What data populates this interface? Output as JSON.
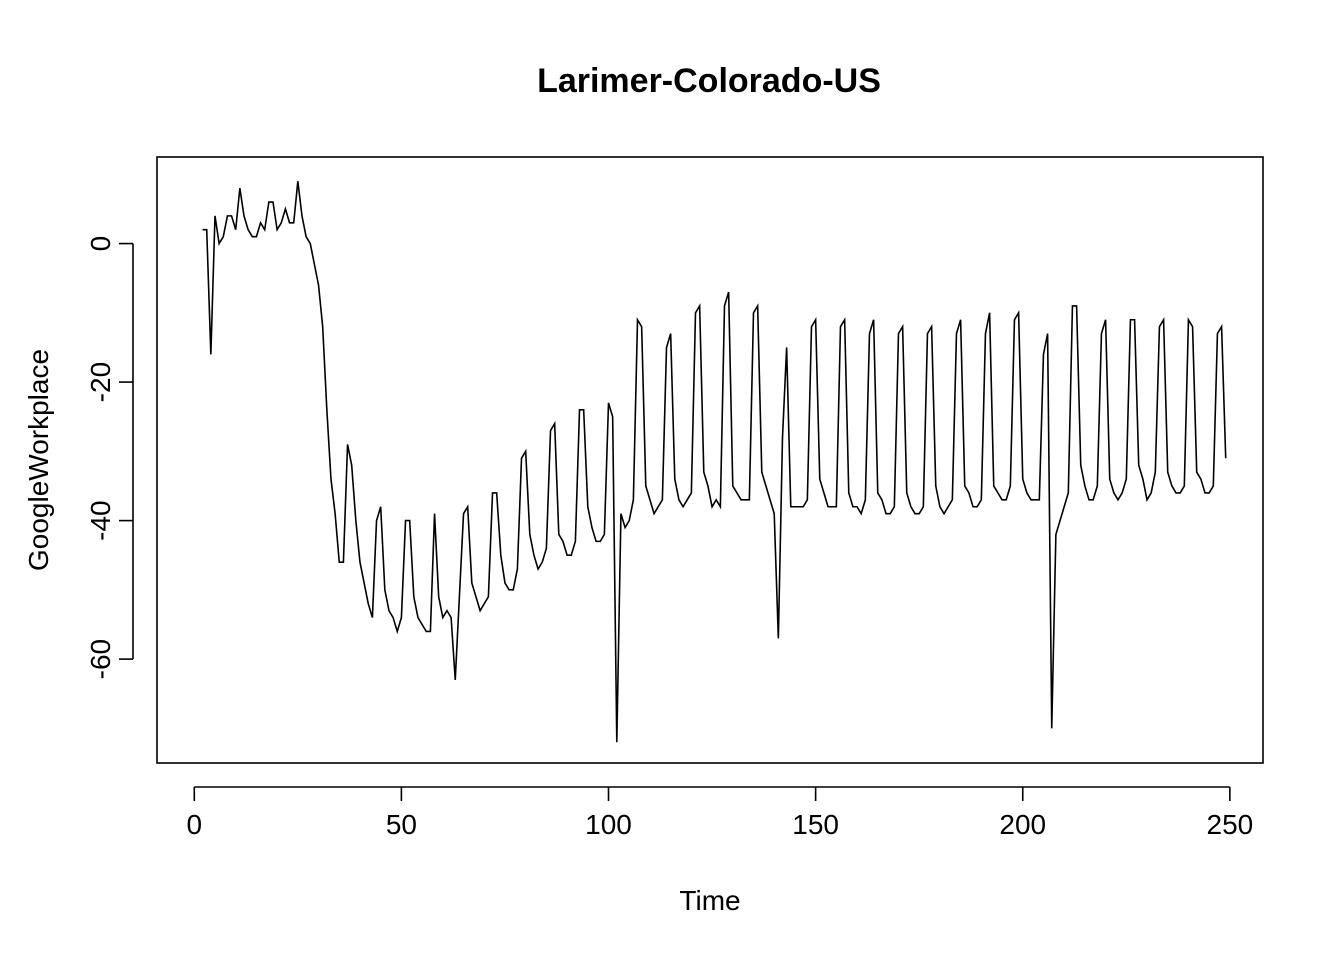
{
  "chart_data": {
    "type": "line",
    "title": "Larimer-Colorado-US",
    "xlabel": "Time",
    "ylabel": "GoogleWorkplace",
    "xlim": [
      -9,
      258
    ],
    "ylim": [
      -75,
      12.5
    ],
    "x_ticks": [
      0,
      50,
      100,
      150,
      200,
      250
    ],
    "x_tick_labels": [
      "0",
      "50",
      "100",
      "150",
      "200",
      "250"
    ],
    "y_ticks": [
      0,
      -20,
      -40,
      -60
    ],
    "y_tick_labels": [
      "0",
      "-20",
      "-40",
      "-60"
    ],
    "grid": false,
    "legend": "none",
    "color": "#000000",
    "series": [
      {
        "x_start": 2,
        "values": [
          2,
          2,
          -16,
          4,
          0,
          1,
          4,
          4,
          2,
          8,
          4,
          2,
          1,
          1,
          3,
          2,
          6,
          6,
          2,
          3,
          5,
          3,
          3,
          9,
          4,
          1,
          0,
          -3,
          -6,
          -12,
          -24,
          -34,
          -39,
          -46,
          -46,
          -29,
          -32,
          -40,
          -46,
          -49,
          -52,
          -54,
          -40,
          -38,
          -50,
          -53,
          -54,
          -56,
          -54,
          -40,
          -40,
          -51,
          -54,
          -55,
          -56,
          -56,
          -39,
          -51,
          -54,
          -53,
          -54,
          -63,
          -51,
          -39,
          -38,
          -49,
          -51,
          -53,
          -52,
          -51,
          -36,
          -36,
          -45,
          -49,
          -50,
          -50,
          -47,
          -31,
          -30,
          -42,
          -45,
          -47,
          -46,
          -44,
          -27,
          -26,
          -42,
          -43,
          -45,
          -45,
          -43,
          -24,
          -24,
          -38,
          -41,
          -43,
          -43,
          -42,
          -23,
          -25,
          -72,
          -39,
          -41,
          -40,
          -37,
          -11,
          -12,
          -35,
          -37,
          -39,
          -38,
          -37,
          -15,
          -13,
          -34,
          -37,
          -38,
          -37,
          -36,
          -10,
          -9,
          -33,
          -35,
          -38,
          -37,
          -38,
          -9,
          -7,
          -35,
          -36,
          -37,
          -37,
          -37,
          -10,
          -9,
          -33,
          -35,
          -37,
          -39,
          -57,
          -28,
          -15,
          -38,
          -38,
          -38,
          -38,
          -37,
          -12,
          -11,
          -34,
          -36,
          -38,
          -38,
          -38,
          -12,
          -11,
          -36,
          -38,
          -38,
          -39,
          -37,
          -13,
          -11,
          -36,
          -37,
          -39,
          -39,
          -38,
          -13,
          -12,
          -36,
          -38,
          -39,
          -39,
          -38,
          -13,
          -12,
          -35,
          -38,
          -39,
          -38,
          -37,
          -13,
          -11,
          -35,
          -36,
          -38,
          -38,
          -37,
          -13,
          -10,
          -35,
          -36,
          -37,
          -37,
          -35,
          -11,
          -10,
          -34,
          -36,
          -37,
          -37,
          -37,
          -16,
          -13,
          -70,
          -42,
          -40,
          -38,
          -36,
          -9,
          -9,
          -32,
          -35,
          -37,
          -37,
          -35,
          -13,
          -11,
          -34,
          -36,
          -37,
          -36,
          -34,
          -11,
          -11,
          -32,
          -34,
          -37,
          -36,
          -33,
          -12,
          -11,
          -33,
          -35,
          -36,
          -36,
          -35,
          -11,
          -12,
          -33,
          -34,
          -36,
          -36,
          -35,
          -13,
          -12,
          -31
        ]
      }
    ]
  }
}
